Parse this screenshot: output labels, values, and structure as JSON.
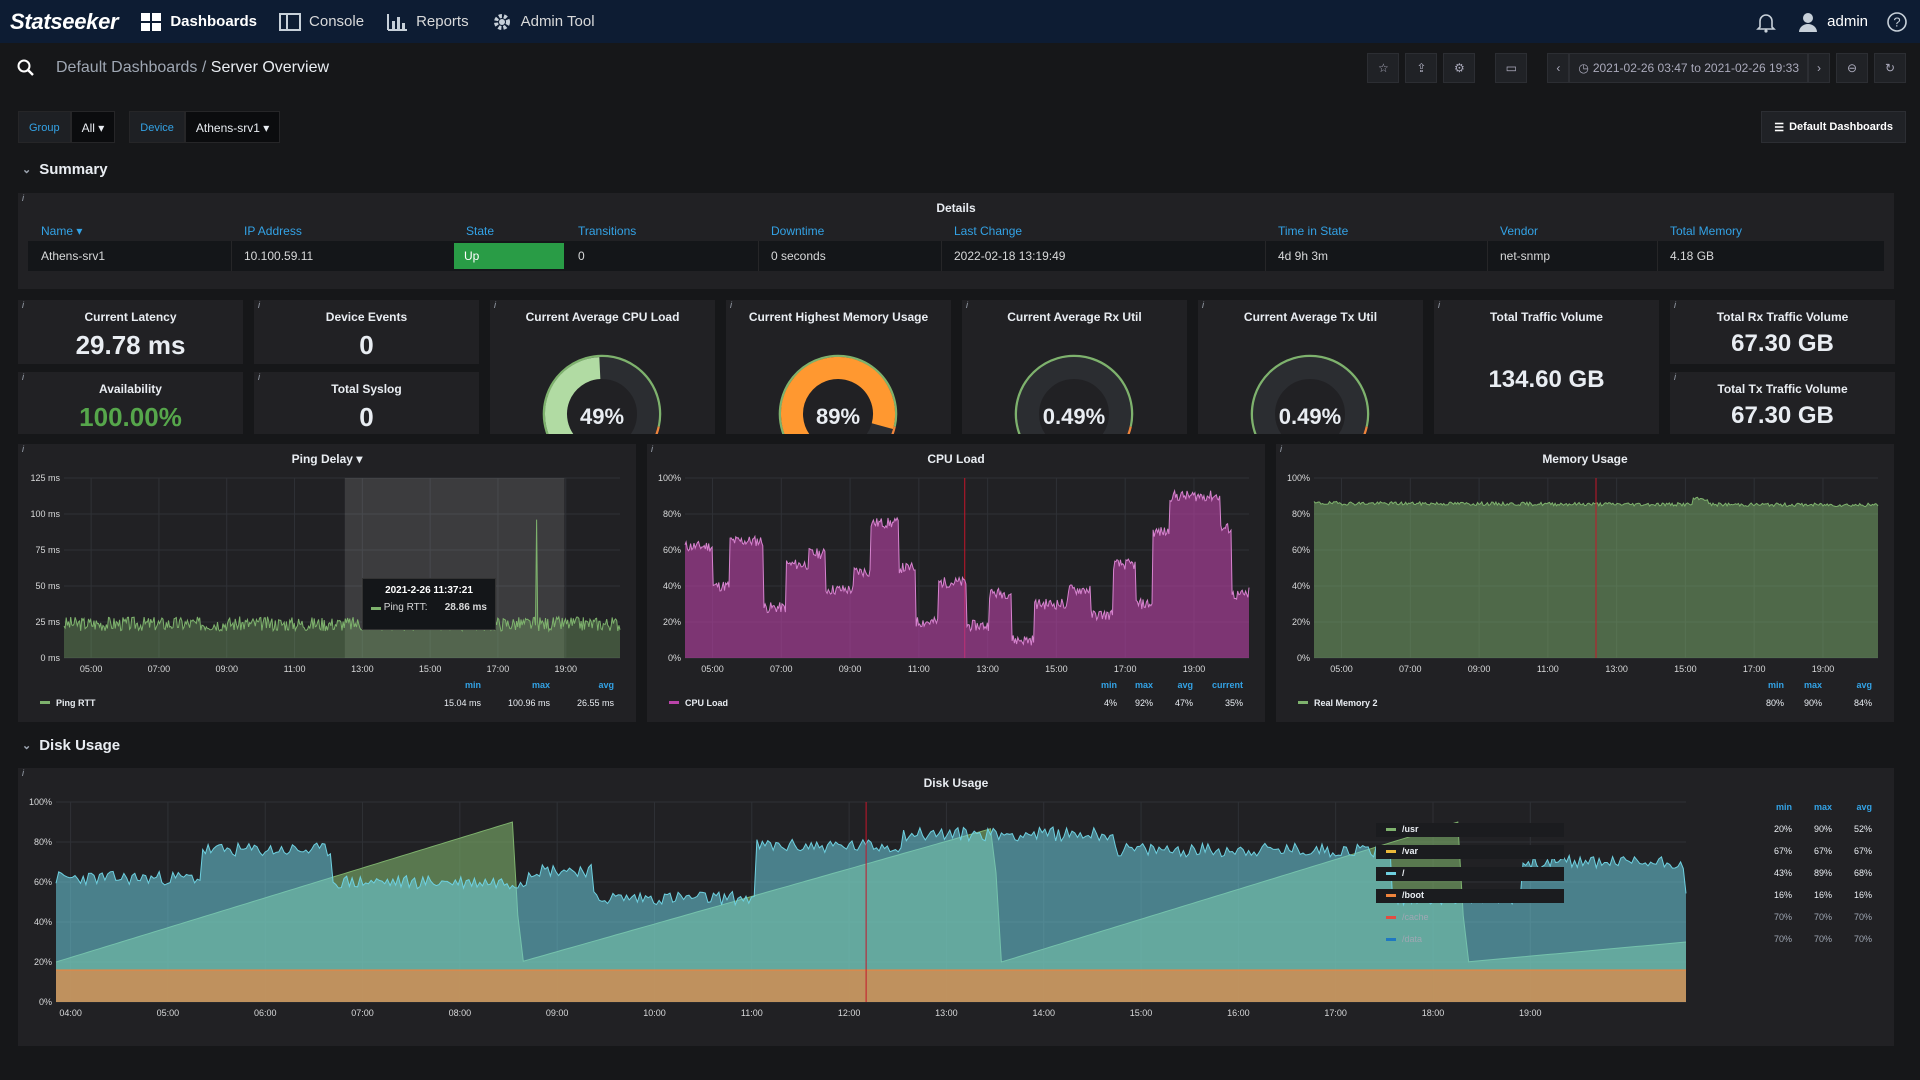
{
  "app": {
    "logo": "Statseeker"
  },
  "nav": [
    {
      "label": "Dashboards",
      "icon": "dashboards-icon",
      "active": true
    },
    {
      "label": "Console",
      "icon": "console-icon"
    },
    {
      "label": "Reports",
      "icon": "reports-icon"
    },
    {
      "label": "Admin Tool",
      "icon": "gear-icon"
    }
  ],
  "user": {
    "name": "admin"
  },
  "breadcrumb": {
    "parent": "Default Dashboards",
    "sep": " / ",
    "current": "Server Overview"
  },
  "timerange": "2021-02-26 03:47 to 2021-02-26 19:33",
  "vars": {
    "group_label": "Group",
    "group_value": "All",
    "device_label": "Device",
    "device_value": "Athens-srv1",
    "dashboards_btn": "Default Dashboards"
  },
  "rows": {
    "summary": "Summary",
    "disk": "Disk Usage"
  },
  "details": {
    "title": "Details",
    "headers": [
      "Name",
      "IP Address",
      "State",
      "Transitions",
      "Downtime",
      "Last Change",
      "Time in State",
      "Vendor",
      "Total Memory"
    ],
    "row": [
      "Athens-srv1",
      "10.100.59.11",
      "Up",
      "0",
      "0 seconds",
      "2022-02-18 13:19:49",
      "4d 9h 3m",
      "net-snmp",
      "4.18 GB"
    ]
  },
  "stats": {
    "latency": {
      "title": "Current Latency",
      "value": "29.78 ms"
    },
    "events": {
      "title": "Device Events",
      "value": "0"
    },
    "availability": {
      "title": "Availability",
      "value": "100.00%"
    },
    "syslog": {
      "title": "Total Syslog",
      "value": "0"
    },
    "cpu": {
      "title": "Current Average CPU Load",
      "value": "49%",
      "fraction": 0.49,
      "color": "#b1dba3"
    },
    "mem": {
      "title": "Current Highest Memory Usage",
      "value": "89%",
      "fraction": 0.89,
      "color": "#ff9830"
    },
    "rx": {
      "title": "Current Average Rx Util",
      "value": "0.49%",
      "fraction": 0.0049,
      "color": "#b1dba3"
    },
    "tx": {
      "title": "Current Average Tx Util",
      "value": "0.49%",
      "fraction": 0.0049,
      "color": "#b1dba3"
    },
    "traffic": {
      "title": "Total Traffic Volume",
      "value": "134.60 GB"
    },
    "rxvol": {
      "title": "Total Rx Traffic Volume",
      "value": "67.30 GB"
    },
    "txvol": {
      "title": "Total Tx Traffic Volume",
      "value": "67.30 GB"
    }
  },
  "ping": {
    "title": "Ping Delay",
    "yticks": [
      "125 ms",
      "100 ms",
      "75 ms",
      "50 ms",
      "25 ms",
      "0 ms"
    ],
    "xticks": [
      "05:00",
      "07:00",
      "09:00",
      "11:00",
      "13:00",
      "15:00",
      "17:00",
      "19:00"
    ],
    "legend_headers": [
      "min",
      "max",
      "avg"
    ],
    "series": {
      "name": "Ping RTT",
      "min": "15.04 ms",
      "max": "100.96 ms",
      "avg": "26.55 ms",
      "color": "#7eb26d"
    },
    "tooltip": {
      "time": "2021-2-26 11:37:21",
      "label": "Ping RTT:",
      "value": "28.86 ms"
    }
  },
  "cpuload": {
    "title": "CPU Load",
    "yticks": [
      "100%",
      "80%",
      "60%",
      "40%",
      "20%",
      "0%"
    ],
    "xticks": [
      "05:00",
      "07:00",
      "09:00",
      "11:00",
      "13:00",
      "15:00",
      "17:00",
      "19:00"
    ],
    "legend_headers": [
      "min",
      "max",
      "avg",
      "current"
    ],
    "series": {
      "name": "CPU Load",
      "min": "4%",
      "max": "92%",
      "avg": "47%",
      "current": "35%",
      "color": "#ba43a9"
    }
  },
  "memusage": {
    "title": "Memory Usage",
    "yticks": [
      "100%",
      "80%",
      "60%",
      "40%",
      "20%",
      "0%"
    ],
    "xticks": [
      "05:00",
      "07:00",
      "09:00",
      "11:00",
      "13:00",
      "15:00",
      "17:00",
      "19:00"
    ],
    "legend_headers": [
      "min",
      "max",
      "avg"
    ],
    "series": {
      "name": "Real Memory 2",
      "min": "80%",
      "max": "90%",
      "avg": "84%",
      "color": "#7eb26d"
    }
  },
  "disk": {
    "title": "Disk Usage",
    "yticks": [
      "100%",
      "80%",
      "60%",
      "40%",
      "20%",
      "0%"
    ],
    "xticks": [
      "04:00",
      "05:00",
      "06:00",
      "07:00",
      "08:00",
      "09:00",
      "10:00",
      "11:00",
      "12:00",
      "13:00",
      "14:00",
      "15:00",
      "16:00",
      "17:00",
      "18:00",
      "19:00"
    ],
    "legend_headers": [
      "min",
      "max",
      "avg"
    ],
    "series": [
      {
        "name": "/usr",
        "min": "20%",
        "max": "90%",
        "avg": "52%",
        "color": "#7eb26d"
      },
      {
        "name": "/var",
        "min": "67%",
        "max": "67%",
        "avg": "67%",
        "color": "#eab839"
      },
      {
        "name": "/",
        "min": "43%",
        "max": "89%",
        "avg": "68%",
        "color": "#6ed0e0"
      },
      {
        "name": "/boot",
        "min": "16%",
        "max": "16%",
        "avg": "16%",
        "color": "#ef843c"
      },
      {
        "name": "/cache",
        "min": "70%",
        "max": "70%",
        "avg": "70%",
        "color": "#e24d42"
      },
      {
        "name": "/data",
        "min": "70%",
        "max": "70%",
        "avg": "70%",
        "color": "#1f78c1"
      }
    ]
  },
  "colors": {
    "accent": "#33a2e5",
    "up": "#299c46",
    "topbar": "#0d1c33",
    "availability": "#56a64b"
  }
}
